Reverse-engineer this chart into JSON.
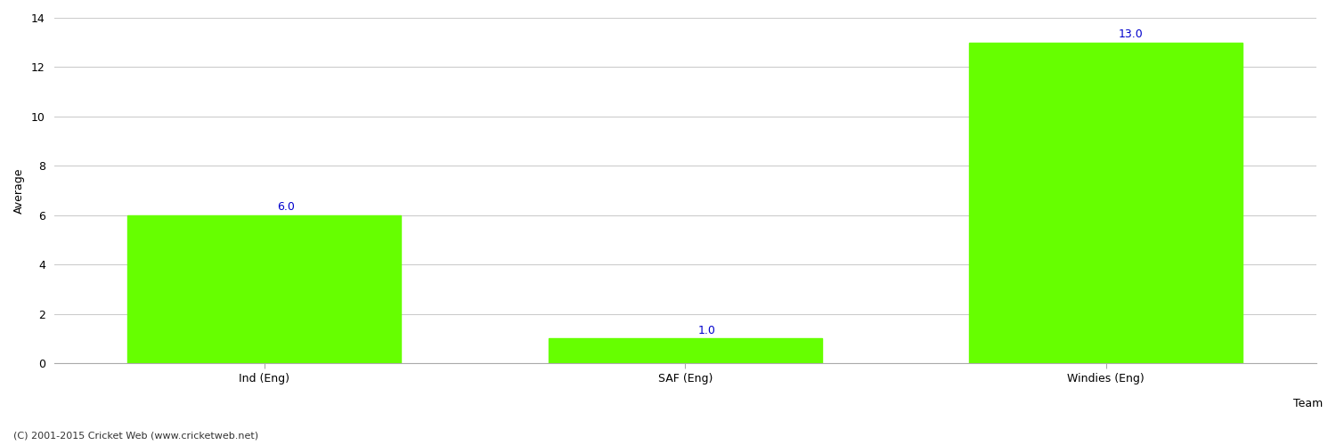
{
  "categories": [
    "Ind (Eng)",
    "SAF (Eng)",
    "Windies (Eng)"
  ],
  "values": [
    6.0,
    1.0,
    13.0
  ],
  "bar_color": "#66ff00",
  "bar_edge_color": "#66ff00",
  "xlabel": "Team",
  "ylabel": "Average",
  "ylim": [
    0,
    14
  ],
  "yticks": [
    0,
    2,
    4,
    6,
    8,
    10,
    12,
    14
  ],
  "label_color": "#0000cc",
  "label_fontsize": 9,
  "tick_fontsize": 9,
  "xlabel_fontsize": 9,
  "ylabel_fontsize": 9,
  "grid_color": "#cccccc",
  "background_color": "#ffffff",
  "footer_text": "(C) 2001-2015 Cricket Web (www.cricketweb.net)",
  "footer_fontsize": 8,
  "footer_color": "#333333",
  "bar_positions": [
    0,
    1,
    2
  ],
  "xlim": [
    -0.5,
    2.5
  ]
}
